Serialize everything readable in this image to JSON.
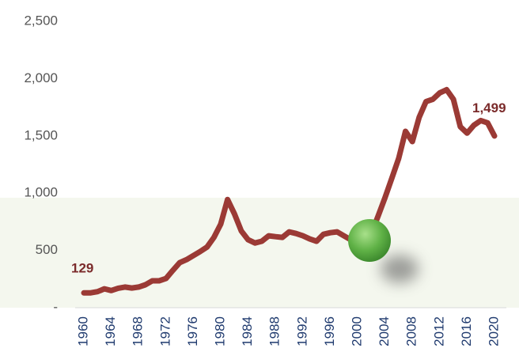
{
  "chart_data": {
    "type": "line",
    "x": [
      1960,
      1961,
      1962,
      1963,
      1964,
      1965,
      1966,
      1967,
      1968,
      1969,
      1970,
      1971,
      1972,
      1973,
      1974,
      1975,
      1976,
      1977,
      1978,
      1979,
      1980,
      1981,
      1982,
      1983,
      1984,
      1985,
      1986,
      1987,
      1988,
      1989,
      1990,
      1991,
      1992,
      1993,
      1994,
      1995,
      1996,
      1997,
      1998,
      1999,
      2000,
      2001,
      2002,
      2003,
      2004,
      2005,
      2006,
      2007,
      2008,
      2009,
      2010,
      2011,
      2012,
      2013,
      2014,
      2015,
      2016,
      2017,
      2018,
      2019,
      2020
    ],
    "series": [
      {
        "color": "#9b3a35",
        "values": [
          129,
          130,
          140,
          165,
          150,
          170,
          180,
          172,
          180,
          200,
          235,
          235,
          255,
          325,
          393,
          420,
          455,
          490,
          530,
          614,
          730,
          945,
          820,
          670,
          593,
          565,
          580,
          628,
          620,
          614,
          662,
          648,
          628,
          600,
          580,
          641,
          655,
          662,
          628,
          593,
          572,
          580,
          648,
          800,
          960,
          1131,
          1303,
          1540,
          1450,
          1662,
          1800,
          1820,
          1876,
          1903,
          1820,
          1580,
          1524,
          1593,
          1634,
          1614,
          1499
        ],
        "value_labels": [
          "129",
          null,
          null,
          null,
          null,
          null,
          null,
          null,
          null,
          null,
          null,
          null,
          null,
          null,
          null,
          null,
          null,
          null,
          null,
          null,
          null,
          null,
          null,
          null,
          null,
          null,
          null,
          null,
          null,
          null,
          null,
          null,
          null,
          null,
          null,
          null,
          null,
          null,
          null,
          null,
          null,
          null,
          null,
          null,
          null,
          null,
          null,
          null,
          null,
          null,
          null,
          null,
          null,
          null,
          null,
          null,
          null,
          null,
          null,
          null,
          "1,499"
        ]
      }
    ],
    "xlim": [
      1960,
      2020
    ],
    "xticks": [
      1960,
      1964,
      1968,
      1972,
      1976,
      1980,
      1984,
      1988,
      1992,
      1996,
      2000,
      2004,
      2008,
      2012,
      2016,
      2020
    ],
    "ylim": [
      0,
      2500
    ],
    "yticks": [
      {
        "value": 0,
        "label": "-"
      },
      500,
      {
        "value": 1000,
        "label": "1,000"
      },
      {
        "value": 1500,
        "label": "1,500"
      },
      {
        "value": 2000,
        "label": "2,000"
      },
      {
        "value": 2500,
        "label": "2,500"
      }
    ]
  }
}
